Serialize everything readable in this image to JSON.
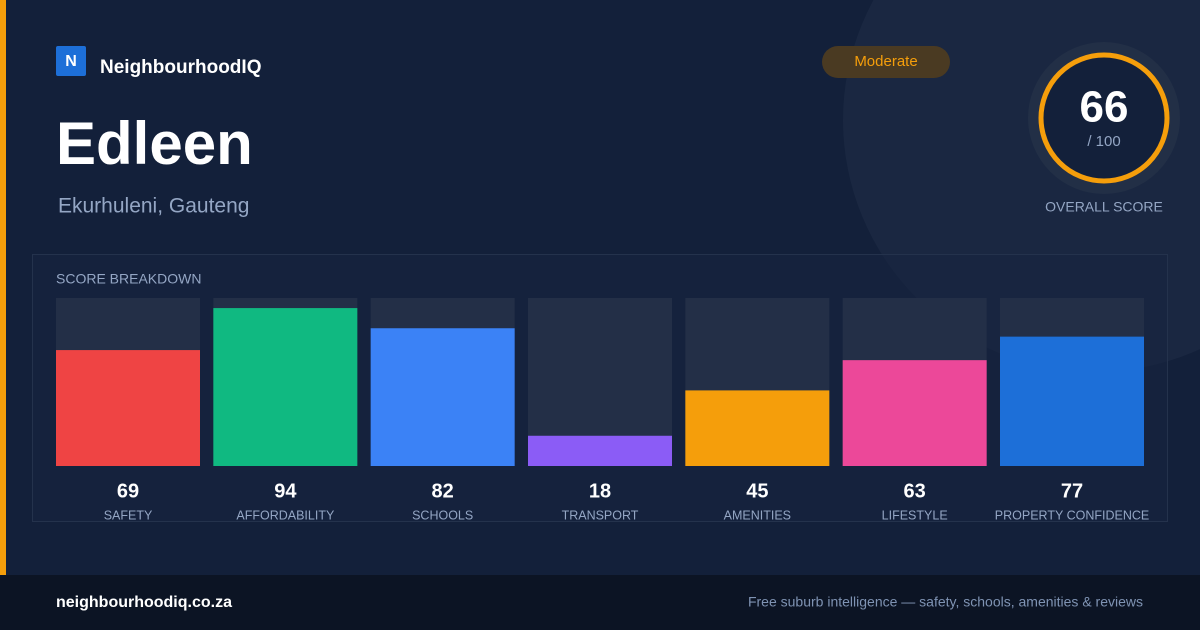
{
  "brand": {
    "logo": "N",
    "name": "NeighbourhoodIQ"
  },
  "place": {
    "name": "Edleen",
    "region": "Ekurhuleni, Gauteng"
  },
  "badge": "Moderate",
  "overall": {
    "score": 66,
    "out_of": "/ 100",
    "label": "OVERALL SCORE"
  },
  "chart_data": {
    "type": "bar",
    "title": "SCORE BREAKDOWN",
    "categories": [
      "SAFETY",
      "AFFORDABILITY",
      "SCHOOLS",
      "TRANSPORT",
      "AMENITIES",
      "LIFESTYLE",
      "PROPERTY CONFIDENCE"
    ],
    "values": [
      69,
      94,
      82,
      18,
      45,
      63,
      77
    ],
    "colors": [
      "#ef4444",
      "#10b981",
      "#3b82f6",
      "#8b5cf6",
      "#f59e0b",
      "#ec4899",
      "#1d6fd8"
    ],
    "ylim": [
      0,
      100
    ]
  },
  "footer": {
    "site": "neighbourhoodiq.co.za",
    "tagline": "Free suburb intelligence — safety, schools, amenities & reviews"
  }
}
